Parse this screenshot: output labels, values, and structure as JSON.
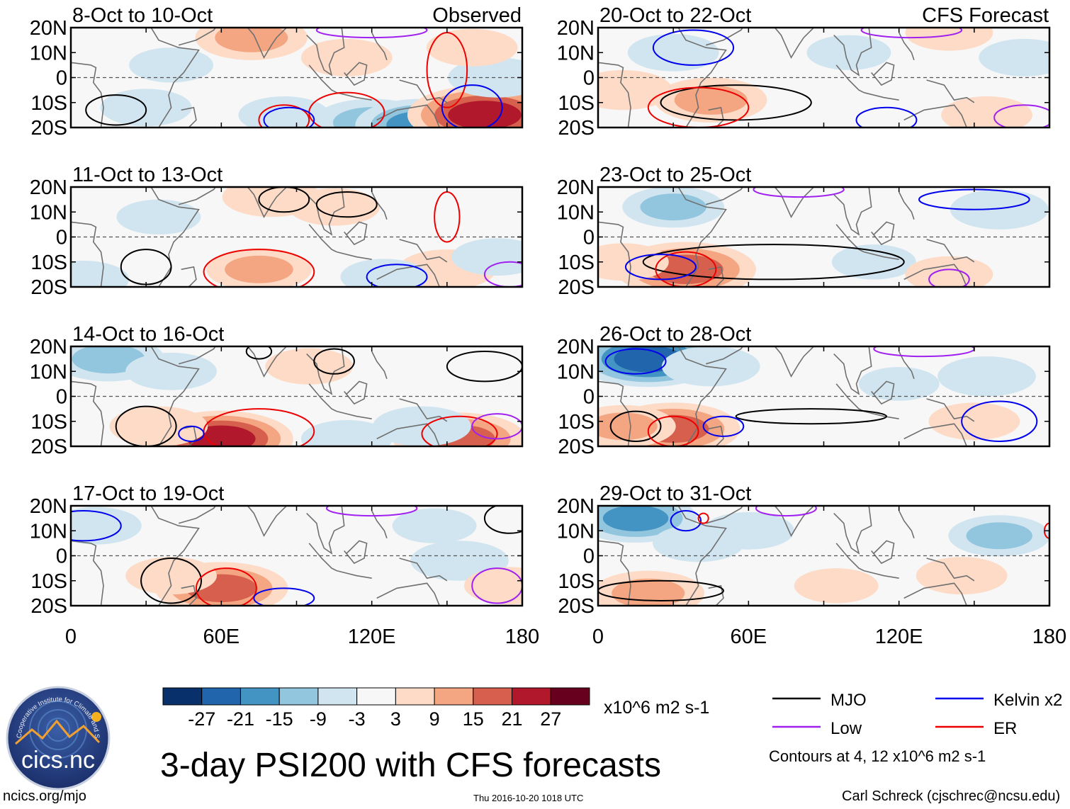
{
  "chart_data": {
    "type": "heatmap",
    "title": "3-day PSI200 with CFS forecasts",
    "variable": "PSI200",
    "units": "x10^6 m2 s-1",
    "colorbar": {
      "ticks": [
        "-27",
        "-21",
        "-15",
        "-9",
        "-3",
        "3",
        "9",
        "15",
        "21",
        "27"
      ],
      "colors": [
        "#08306b",
        "#2166ac",
        "#4393c3",
        "#92c5de",
        "#d1e5f0",
        "#f7f7f7",
        "#fddbc7",
        "#f4a582",
        "#d6604d",
        "#b2182b",
        "#67001f"
      ]
    },
    "columns": [
      {
        "label": "Observed",
        "x_ticks": [
          "0",
          "60E",
          "120E",
          "180"
        ]
      },
      {
        "label": "CFS Forecast",
        "x_ticks": [
          "0",
          "60E",
          "120E",
          "180"
        ]
      }
    ],
    "y_ticks": [
      "20N",
      "10N",
      "0",
      "10S",
      "20S"
    ],
    "xlim": [
      0,
      180
    ],
    "ylim": [
      -20,
      20
    ],
    "panels": [
      {
        "period": "8-Oct to 10-Oct",
        "column": 0,
        "row": 0,
        "anomalies": [
          {
            "lon": 72,
            "lat": 16,
            "value": 12
          },
          {
            "lon": 110,
            "lat": 8,
            "value": 6
          },
          {
            "lon": 30,
            "lat": -12,
            "value": -6
          },
          {
            "lon": 40,
            "lat": 5,
            "value": -4
          },
          {
            "lon": 120,
            "lat": -18,
            "value": -14
          },
          {
            "lon": 140,
            "lat": -19,
            "value": -18
          },
          {
            "lon": 165,
            "lat": -15,
            "value": 24
          },
          {
            "lon": 170,
            "lat": 0,
            "value": -8
          },
          {
            "lon": 85,
            "lat": -15,
            "value": -6
          },
          {
            "lon": 160,
            "lat": 12,
            "value": 6
          }
        ],
        "contours": [
          {
            "wave": "MJO",
            "lon": 18,
            "lat": -13,
            "rx": 12,
            "ry": 6
          },
          {
            "wave": "Low",
            "lon": 120,
            "lat": 19,
            "rx": 22,
            "ry": 3
          },
          {
            "wave": "ER",
            "lon": 150,
            "lat": 3,
            "rx": 8,
            "ry": 15
          },
          {
            "wave": "ER",
            "lon": 85,
            "lat": -17,
            "rx": 10,
            "ry": 6
          },
          {
            "wave": "ER",
            "lon": 110,
            "lat": -14,
            "rx": 15,
            "ry": 8
          },
          {
            "wave": "Kelvin x2",
            "lon": 160,
            "lat": -12,
            "rx": 12,
            "ry": 9
          },
          {
            "wave": "Kelvin x2",
            "lon": 87,
            "lat": -17,
            "rx": 10,
            "ry": 5
          }
        ]
      },
      {
        "period": "20-Oct to 22-Oct",
        "column": 1,
        "row": 0,
        "anomalies": [
          {
            "lon": 45,
            "lat": -9,
            "value": 12
          },
          {
            "lon": 10,
            "lat": -5,
            "value": 8
          },
          {
            "lon": 30,
            "lat": 10,
            "value": -6
          },
          {
            "lon": 100,
            "lat": 10,
            "value": -4
          },
          {
            "lon": 170,
            "lat": 8,
            "value": -6
          },
          {
            "lon": 155,
            "lat": -15,
            "value": 6
          },
          {
            "lon": 140,
            "lat": 18,
            "value": 5
          }
        ],
        "contours": [
          {
            "wave": "MJO",
            "lon": 55,
            "lat": -10,
            "rx": 30,
            "ry": 7
          },
          {
            "wave": "ER",
            "lon": 40,
            "lat": -12,
            "rx": 20,
            "ry": 8
          },
          {
            "wave": "Kelvin x2",
            "lon": 38,
            "lat": 12,
            "rx": 16,
            "ry": 7
          },
          {
            "wave": "Low",
            "lon": 125,
            "lat": 19,
            "rx": 20,
            "ry": 3
          },
          {
            "wave": "Kelvin x2",
            "lon": 115,
            "lat": -17,
            "rx": 12,
            "ry": 5
          },
          {
            "wave": "Low",
            "lon": 170,
            "lat": -16,
            "rx": 12,
            "ry": 5
          }
        ]
      },
      {
        "period": "11-Oct to 13-Oct",
        "column": 0,
        "row": 1,
        "anomalies": [
          {
            "lon": 80,
            "lat": 16,
            "value": 8
          },
          {
            "lon": 105,
            "lat": 12,
            "value": 6
          },
          {
            "lon": 75,
            "lat": -13,
            "value": 10
          },
          {
            "lon": 150,
            "lat": -13,
            "value": 8
          },
          {
            "lon": 35,
            "lat": 8,
            "value": -4
          },
          {
            "lon": 5,
            "lat": -17,
            "value": -6
          },
          {
            "lon": 125,
            "lat": -16,
            "value": -5
          },
          {
            "lon": 170,
            "lat": -8,
            "value": -6
          }
        ],
        "contours": [
          {
            "wave": "MJO",
            "lon": 85,
            "lat": 15,
            "rx": 10,
            "ry": 5
          },
          {
            "wave": "MJO",
            "lon": 110,
            "lat": 13,
            "rx": 12,
            "ry": 5
          },
          {
            "wave": "MJO",
            "lon": 30,
            "lat": -12,
            "rx": 10,
            "ry": 7
          },
          {
            "wave": "ER",
            "lon": 150,
            "lat": 8,
            "rx": 5,
            "ry": 10
          },
          {
            "wave": "ER",
            "lon": 75,
            "lat": -14,
            "rx": 22,
            "ry": 9
          },
          {
            "wave": "Kelvin x2",
            "lon": 130,
            "lat": -16,
            "rx": 12,
            "ry": 5
          },
          {
            "wave": "Low",
            "lon": 175,
            "lat": -15,
            "rx": 10,
            "ry": 5
          }
        ]
      },
      {
        "period": "23-Oct to 25-Oct",
        "column": 1,
        "row": 1,
        "anomalies": [
          {
            "lon": 35,
            "lat": -13,
            "value": 20
          },
          {
            "lon": 10,
            "lat": -10,
            "value": 6
          },
          {
            "lon": 30,
            "lat": 12,
            "value": -9
          },
          {
            "lon": 160,
            "lat": 11,
            "value": -8
          },
          {
            "lon": 110,
            "lat": -10,
            "value": -4
          },
          {
            "lon": 140,
            "lat": -15,
            "value": 5
          }
        ],
        "contours": [
          {
            "wave": "MJO",
            "lon": 70,
            "lat": -10,
            "rx": 52,
            "ry": 7
          },
          {
            "wave": "ER",
            "lon": 35,
            "lat": -13,
            "rx": 12,
            "ry": 7
          },
          {
            "wave": "Kelvin x2",
            "lon": 25,
            "lat": -12,
            "rx": 14,
            "ry": 5
          },
          {
            "wave": "Low",
            "lon": 80,
            "lat": 19,
            "rx": 18,
            "ry": 3
          },
          {
            "wave": "Kelvin x2",
            "lon": 150,
            "lat": 15,
            "rx": 22,
            "ry": 4
          },
          {
            "wave": "Low",
            "lon": 140,
            "lat": -17,
            "rx": 8,
            "ry": 4
          }
        ]
      },
      {
        "period": "14-Oct to 16-Oct",
        "column": 0,
        "row": 2,
        "anomalies": [
          {
            "lon": 15,
            "lat": 15,
            "value": -12
          },
          {
            "lon": 40,
            "lat": 10,
            "value": -6
          },
          {
            "lon": 60,
            "lat": -17,
            "value": 21
          },
          {
            "lon": 35,
            "lat": -12,
            "value": 8
          },
          {
            "lon": 155,
            "lat": -17,
            "value": 18
          },
          {
            "lon": 140,
            "lat": -12,
            "value": -8
          },
          {
            "lon": 110,
            "lat": -17,
            "value": -6
          },
          {
            "lon": 95,
            "lat": 12,
            "value": 5
          }
        ],
        "contours": [
          {
            "wave": "MJO",
            "lon": 30,
            "lat": -12,
            "rx": 12,
            "ry": 8
          },
          {
            "wave": "MJO",
            "lon": 75,
            "lat": 18,
            "rx": 5,
            "ry": 3
          },
          {
            "wave": "MJO",
            "lon": 105,
            "lat": 14,
            "rx": 8,
            "ry": 5
          },
          {
            "wave": "MJO",
            "lon": 165,
            "lat": 12,
            "rx": 15,
            "ry": 6
          },
          {
            "wave": "ER",
            "lon": 75,
            "lat": -14,
            "rx": 22,
            "ry": 9
          },
          {
            "wave": "ER",
            "lon": 155,
            "lat": -15,
            "rx": 15,
            "ry": 7
          },
          {
            "wave": "Kelvin x2",
            "lon": 48,
            "lat": -15,
            "rx": 5,
            "ry": 3
          },
          {
            "wave": "Low",
            "lon": 170,
            "lat": -12,
            "rx": 10,
            "ry": 5
          }
        ]
      },
      {
        "period": "26-Oct to 28-Oct",
        "column": 1,
        "row": 2,
        "anomalies": [
          {
            "lon": 20,
            "lat": 15,
            "value": -21
          },
          {
            "lon": 45,
            "lat": 12,
            "value": -8
          },
          {
            "lon": 30,
            "lat": -13,
            "value": 18
          },
          {
            "lon": 10,
            "lat": -12,
            "value": 10
          },
          {
            "lon": 155,
            "lat": 8,
            "value": -8
          },
          {
            "lon": 120,
            "lat": 5,
            "value": -3
          },
          {
            "lon": 150,
            "lat": -10,
            "value": 6
          }
        ],
        "contours": [
          {
            "wave": "MJO",
            "lon": 85,
            "lat": -8,
            "rx": 30,
            "ry": 3
          },
          {
            "wave": "MJO",
            "lon": 15,
            "lat": -12,
            "rx": 10,
            "ry": 6
          },
          {
            "wave": "ER",
            "lon": 30,
            "lat": -14,
            "rx": 10,
            "ry": 6
          },
          {
            "wave": "Kelvin x2",
            "lon": 15,
            "lat": 14,
            "rx": 12,
            "ry": 5
          },
          {
            "wave": "Kelvin x2",
            "lon": 50,
            "lat": -12,
            "rx": 8,
            "ry": 4
          },
          {
            "wave": "Kelvin x2",
            "lon": 160,
            "lat": -10,
            "rx": 15,
            "ry": 8
          },
          {
            "wave": "Low",
            "lon": 130,
            "lat": 19,
            "rx": 20,
            "ry": 3
          }
        ]
      },
      {
        "period": "17-Oct to 19-Oct",
        "column": 0,
        "row": 3,
        "anomalies": [
          {
            "lon": 60,
            "lat": -13,
            "value": 18
          },
          {
            "lon": 40,
            "lat": -8,
            "value": 6
          },
          {
            "lon": 10,
            "lat": 12,
            "value": -6
          },
          {
            "lon": 155,
            "lat": -2,
            "value": -8
          },
          {
            "lon": 145,
            "lat": 12,
            "value": -4
          },
          {
            "lon": 175,
            "lat": -12,
            "value": 6
          }
        ],
        "contours": [
          {
            "wave": "MJO",
            "lon": 40,
            "lat": -10,
            "rx": 12,
            "ry": 9
          },
          {
            "wave": "MJO",
            "lon": 175,
            "lat": 15,
            "rx": 10,
            "ry": 6
          },
          {
            "wave": "ER",
            "lon": 62,
            "lat": -13,
            "rx": 12,
            "ry": 8
          },
          {
            "wave": "Kelvin x2",
            "lon": 5,
            "lat": 12,
            "rx": 15,
            "ry": 6
          },
          {
            "wave": "Kelvin x2",
            "lon": 85,
            "lat": -17,
            "rx": 12,
            "ry": 4
          },
          {
            "wave": "Low",
            "lon": 120,
            "lat": 19,
            "rx": 18,
            "ry": 3
          },
          {
            "wave": "Low",
            "lon": 170,
            "lat": -12,
            "rx": 10,
            "ry": 7
          }
        ]
      },
      {
        "period": "29-Oct to 31-Oct",
        "column": 1,
        "row": 3,
        "anomalies": [
          {
            "lon": 15,
            "lat": 15,
            "value": -15
          },
          {
            "lon": 40,
            "lat": 5,
            "value": -6
          },
          {
            "lon": 60,
            "lat": 10,
            "value": -6
          },
          {
            "lon": 20,
            "lat": -15,
            "value": 12
          },
          {
            "lon": 160,
            "lat": 8,
            "value": -9
          },
          {
            "lon": 145,
            "lat": -8,
            "value": 6
          },
          {
            "lon": 95,
            "lat": -12,
            "value": 4
          }
        ],
        "contours": [
          {
            "wave": "MJO",
            "lon": 25,
            "lat": -14,
            "rx": 25,
            "ry": 4
          },
          {
            "wave": "Kelvin x2",
            "lon": 35,
            "lat": 14,
            "rx": 6,
            "ry": 4
          },
          {
            "wave": "ER",
            "lon": 42,
            "lat": 15,
            "rx": 2,
            "ry": 2
          },
          {
            "wave": "Low",
            "lon": 75,
            "lat": 19,
            "rx": 12,
            "ry": 3
          },
          {
            "wave": "ER",
            "lon": 180,
            "lat": 10,
            "rx": 2,
            "ry": 3
          }
        ]
      }
    ],
    "legend": [
      {
        "name": "MJO",
        "color": "#000000"
      },
      {
        "name": "Kelvin x2",
        "color": "#0000ee"
      },
      {
        "name": "Low",
        "color": "#a020f0"
      },
      {
        "name": "ER",
        "color": "#ee0000"
      }
    ],
    "contour_note": "Contours at 4, 12 x10^6 m2 s-1"
  },
  "logo": {
    "text": "cics.nc",
    "ring_text": "Cooperative Institute for Climate and Satellites"
  },
  "footer": {
    "left": "ncics.org/mjo",
    "center": "Thu 2016-10-20 1018 UTC",
    "right": "Carl Schreck (cjschrec@ncsu.edu)"
  }
}
